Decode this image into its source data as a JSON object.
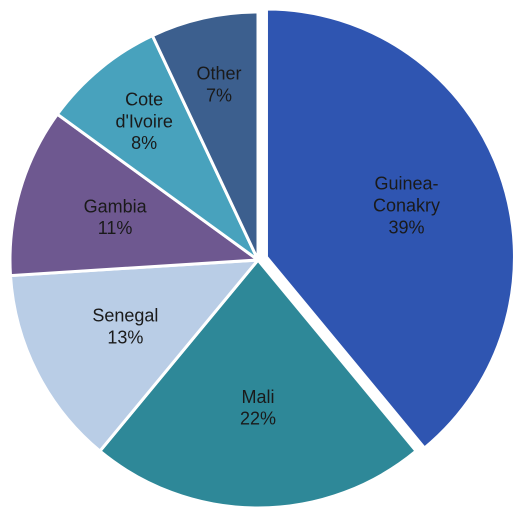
{
  "chart_data": {
    "type": "pie",
    "categories": [
      "Guinea-Conakry",
      "Mali",
      "Senegal",
      "Gambia",
      "Cote d'Ivoire",
      "Other"
    ],
    "values": [
      39,
      22,
      13,
      11,
      8,
      7
    ],
    "value_labels": [
      "39%",
      "22%",
      "13%",
      "11%",
      "8%",
      "7%"
    ],
    "colors": [
      "#2f55b1",
      "#2e8898",
      "#b9cde6",
      "#6e5890",
      "#48a2bd",
      "#3c5f8e"
    ],
    "exploded": [
      0
    ]
  }
}
